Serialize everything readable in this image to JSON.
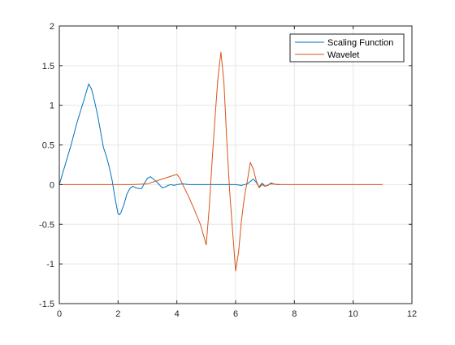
{
  "chart_data": {
    "type": "line",
    "title": "",
    "xlabel": "",
    "ylabel": "",
    "xlim": [
      0,
      12
    ],
    "ylim": [
      -1.5,
      2
    ],
    "xticks": [
      0,
      2,
      4,
      6,
      8,
      10,
      12
    ],
    "yticks": [
      -1.5,
      -1,
      -0.5,
      0,
      0.5,
      1,
      1.5,
      2
    ],
    "xtick_labels": [
      "0",
      "2",
      "4",
      "6",
      "8",
      "10",
      "12"
    ],
    "ytick_labels": [
      "-1.5",
      "-1",
      "-0.5",
      "0",
      "0.5",
      "1",
      "1.5",
      "2"
    ],
    "grid": true,
    "box": true,
    "legend_position": "top-right",
    "series": [
      {
        "name": "Scaling Function",
        "color": "#0072BD",
        "x": [
          0,
          0.2,
          0.4,
          0.6,
          0.8,
          1.0,
          1.1,
          1.2,
          1.3,
          1.4,
          1.5,
          1.6,
          1.7,
          1.8,
          1.9,
          2.0,
          2.05,
          2.1,
          2.2,
          2.3,
          2.4,
          2.5,
          2.6,
          2.7,
          2.8,
          2.9,
          3.0,
          3.1,
          3.2,
          3.3,
          3.4,
          3.5,
          3.6,
          3.7,
          3.8,
          3.9,
          4.0,
          4.2,
          4.4,
          4.6,
          4.8,
          5.0,
          5.5,
          6.0,
          6.2,
          6.4,
          6.5,
          6.6,
          6.7,
          6.8,
          6.9,
          7.0,
          7.1,
          7.2,
          7.3,
          7.4,
          7.5
        ],
        "y": [
          0,
          0.25,
          0.5,
          0.78,
          1.02,
          1.27,
          1.2,
          1.05,
          0.88,
          0.68,
          0.47,
          0.36,
          0.22,
          0.05,
          -0.18,
          -0.37,
          -0.38,
          -0.35,
          -0.25,
          -0.12,
          -0.05,
          -0.02,
          -0.04,
          -0.05,
          -0.05,
          0.02,
          0.08,
          0.1,
          0.07,
          0.04,
          0.0,
          -0.04,
          -0.03,
          -0.01,
          0.0,
          -0.01,
          0.0,
          0.01,
          0.0,
          0.0,
          0.0,
          0.0,
          0.0,
          0.0,
          -0.01,
          0.01,
          0.04,
          0.07,
          0.03,
          -0.03,
          0.02,
          -0.02,
          -0.01,
          0.02,
          0.01,
          0.0,
          0.0
        ]
      },
      {
        "name": "Wavelet",
        "color": "#D95319",
        "x": [
          0,
          1,
          2,
          2.5,
          3.0,
          3.5,
          4.0,
          4.1,
          4.2,
          4.4,
          4.6,
          4.8,
          5.0,
          5.1,
          5.2,
          5.3,
          5.4,
          5.5,
          5.6,
          5.7,
          5.8,
          5.9,
          6.0,
          6.1,
          6.2,
          6.3,
          6.4,
          6.5,
          6.6,
          6.7,
          6.8,
          6.9,
          7.0,
          7.2,
          7.5,
          8,
          9,
          10,
          11
        ],
        "y": [
          0,
          0,
          0,
          0.0,
          0.01,
          0.07,
          0.13,
          0.08,
          0.0,
          -0.15,
          -0.32,
          -0.5,
          -0.76,
          -0.3,
          0.3,
          0.85,
          1.35,
          1.67,
          1.3,
          0.55,
          -0.1,
          -0.6,
          -1.09,
          -0.85,
          -0.45,
          -0.15,
          0.05,
          0.28,
          0.2,
          0.05,
          -0.04,
          0.0,
          -0.02,
          0.01,
          0.0,
          0.0,
          0.0,
          0.0,
          0.0
        ]
      }
    ]
  }
}
